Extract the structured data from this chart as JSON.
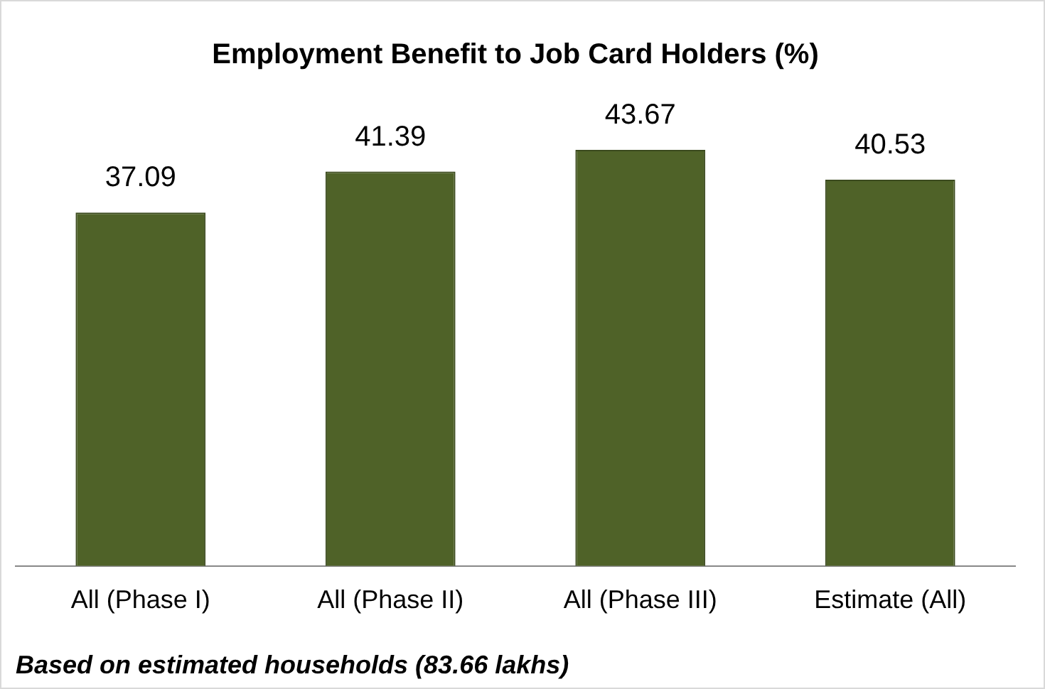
{
  "chart_data": {
    "type": "bar",
    "title": "Employment Benefit to Job Card Holders (%)",
    "categories": [
      "All (Phase I)",
      "All (Phase II)",
      "All (Phase III)",
      "Estimate (All)"
    ],
    "values": [
      37.09,
      41.39,
      43.67,
      40.53
    ],
    "color": "#4f6228",
    "tick_labels": "x",
    "data_labels": true,
    "grid": false,
    "legend": false,
    "annotations": [
      "Based on estimated households (83.66 lakhs)"
    ]
  }
}
